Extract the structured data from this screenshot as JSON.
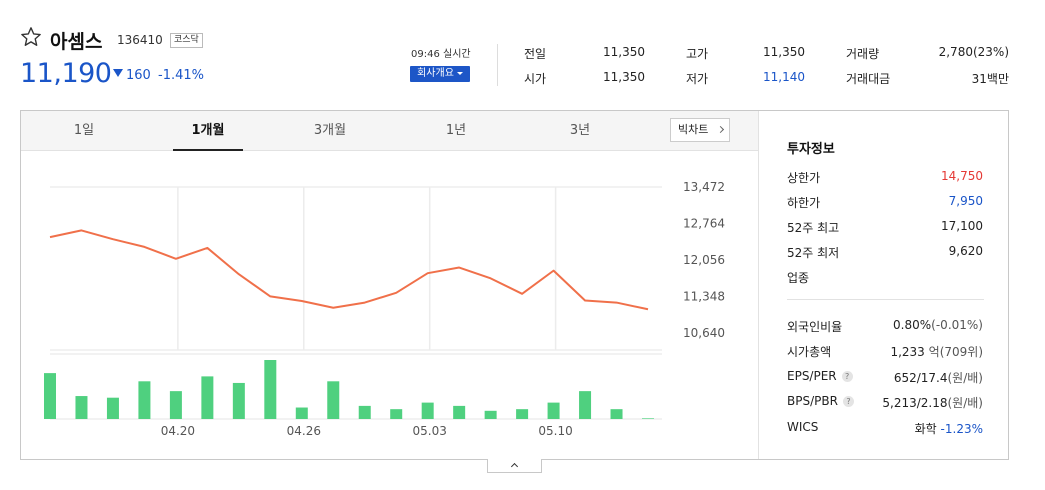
{
  "stock": {
    "name": "아셈스",
    "code": "136410",
    "market": "코스닥",
    "price": "11,190",
    "change": "160",
    "change_pct": "-1.41%",
    "direction": "down"
  },
  "realtime": {
    "time": "09:46 실시간",
    "company_btn": "회사개요"
  },
  "quote": {
    "prev_close_label": "전일",
    "prev_close": "11,350",
    "open_label": "시가",
    "open": "11,350",
    "high_label": "고가",
    "high": "11,350",
    "low_label": "저가",
    "low": "11,140",
    "volume_label": "거래량",
    "volume": "2,780(23%)",
    "amount_label": "거래대금",
    "amount": "31백만"
  },
  "tabs": [
    {
      "label": "1일",
      "active": false
    },
    {
      "label": "1개월",
      "active": true
    },
    {
      "label": "3개월",
      "active": false
    },
    {
      "label": "1년",
      "active": false
    },
    {
      "label": "3년",
      "active": false
    }
  ],
  "big_chart_label": "빅차트",
  "chart_data": {
    "type": "line",
    "y_ticks": [
      "13,472",
      "12,764",
      "12,056",
      "11,348",
      "10,640"
    ],
    "ylim": [
      10640,
      13472
    ],
    "x_ticks": [
      "04.20",
      "04.26",
      "05.03",
      "05.10"
    ],
    "price_series": [
      12500,
      12630,
      12460,
      12310,
      12080,
      12290,
      11780,
      11350,
      11260,
      11130,
      11230,
      11420,
      11800,
      11910,
      11700,
      11400,
      11850,
      11270,
      11230,
      11100
    ],
    "volume_series": [
      28,
      14,
      13,
      23,
      17,
      26,
      22,
      36,
      7,
      23,
      8,
      6,
      10,
      8,
      5,
      6,
      10,
      17,
      6,
      0.4
    ],
    "line_color": "#f0704a",
    "bar_color": "#4fd07f"
  },
  "invest": {
    "title": "투자정보",
    "upper_label": "상한가",
    "upper": "14,750",
    "lower_label": "하한가",
    "lower": "7,950",
    "high52_label": "52주 최고",
    "high52": "17,100",
    "low52_label": "52주 최저",
    "low52": "9,620",
    "sector_label": "업종",
    "foreign_label": "외국인비율",
    "foreign": "0.80%",
    "foreign_chg": "(-0.01%)",
    "mcap_label": "시가총액",
    "mcap": "1,233",
    "mcap_unit1": "억",
    "mcap_rank": "(709위)",
    "eps_label": "EPS/PER",
    "eps": "652/17.4",
    "eps_unit": "(원/배)",
    "bps_label": "BPS/PBR",
    "bps": "5,213/2.18",
    "bps_unit": "(원/배)",
    "wics_label": "WICS",
    "wics": "화학",
    "wics_chg": "-1.23%"
  }
}
